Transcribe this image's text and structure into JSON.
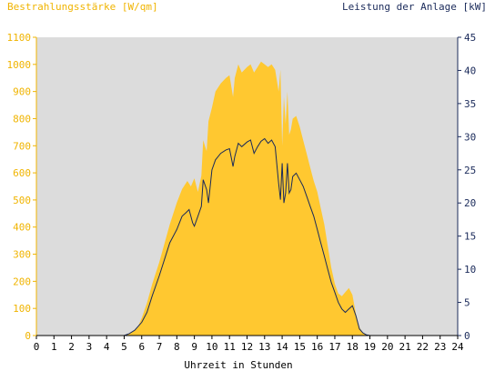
{
  "chart_data": {
    "type": "area",
    "title": "",
    "xlabel": "Uhrzeit in Stunden",
    "ylabel_left": "Bestrahlungsstärke [W/qm]",
    "ylabel_right": "Leistung der Anlage [kW]",
    "xlim": [
      0,
      24
    ],
    "ylim_left": [
      0,
      1100
    ],
    "ylim_right": [
      0,
      45
    ],
    "x_ticks": [
      "0",
      "1",
      "2",
      "3",
      "4",
      "5",
      "6",
      "7",
      "8",
      "9",
      "10",
      "11",
      "12",
      "13",
      "14",
      "15",
      "16",
      "17",
      "18",
      "19",
      "20",
      "21",
      "22",
      "23",
      "24"
    ],
    "y_left_ticks": [
      "0",
      "100",
      "200",
      "300",
      "400",
      "500",
      "600",
      "700",
      "800",
      "900",
      "1000",
      "1100"
    ],
    "y_right_ticks": [
      "0",
      "5",
      "10",
      "15",
      "20",
      "25",
      "30",
      "35",
      "40",
      "45"
    ],
    "grid": false,
    "colors": {
      "background": "#dcdcdc",
      "irradiance_fill": "#ffc830",
      "irradiance_axis": "#f0b400",
      "power_line": "#1a2a5a",
      "right_axis": "#1a2a5a"
    },
    "series": [
      {
        "name": "Bestrahlungsstärke [W/qm]",
        "axis": "left",
        "x": [
          0,
          5.0,
          5.2,
          5.5,
          5.8,
          6.0,
          6.3,
          6.6,
          7.0,
          7.3,
          7.6,
          8.0,
          8.3,
          8.6,
          8.8,
          9.0,
          9.2,
          9.4,
          9.5,
          9.7,
          9.8,
          10.0,
          10.2,
          10.5,
          10.8,
          11.0,
          11.2,
          11.3,
          11.5,
          11.7,
          12.0,
          12.2,
          12.4,
          12.6,
          12.8,
          13.0,
          13.2,
          13.4,
          13.6,
          13.8,
          13.9,
          14.0,
          14.1,
          14.2,
          14.3,
          14.4,
          14.5,
          14.6,
          14.8,
          15.0,
          15.2,
          15.4,
          15.6,
          15.8,
          16.0,
          16.2,
          16.4,
          16.6,
          16.8,
          17.0,
          17.2,
          17.4,
          17.6,
          17.8,
          18.0,
          18.2,
          18.4,
          18.6,
          18.8,
          19.0,
          19.2,
          19.5,
          19.8,
          20.0,
          24
        ],
        "values": [
          0,
          0,
          5,
          15,
          35,
          65,
          120,
          190,
          270,
          340,
          410,
          490,
          540,
          570,
          550,
          580,
          530,
          590,
          720,
          680,
          790,
          840,
          900,
          930,
          950,
          960,
          880,
          950,
          1000,
          970,
          990,
          1000,
          970,
          990,
          1010,
          1000,
          990,
          1000,
          980,
          900,
          980,
          700,
          880,
          780,
          900,
          740,
          760,
          800,
          810,
          770,
          720,
          670,
          620,
          570,
          530,
          470,
          410,
          330,
          250,
          190,
          155,
          145,
          160,
          175,
          150,
          80,
          30,
          10,
          3,
          0,
          0,
          0,
          0,
          0,
          0
        ]
      },
      {
        "name": "Leistung der Anlage [kW]",
        "axis": "right",
        "x": [
          0,
          5.0,
          5.3,
          5.6,
          6.0,
          6.3,
          6.6,
          7.0,
          7.3,
          7.6,
          8.0,
          8.3,
          8.5,
          8.7,
          8.9,
          9.0,
          9.2,
          9.4,
          9.5,
          9.7,
          9.8,
          10.0,
          10.2,
          10.5,
          10.8,
          11.0,
          11.2,
          11.3,
          11.5,
          11.7,
          12.0,
          12.2,
          12.4,
          12.6,
          12.8,
          13.0,
          13.2,
          13.4,
          13.6,
          13.8,
          13.9,
          14.0,
          14.1,
          14.2,
          14.3,
          14.4,
          14.5,
          14.6,
          14.8,
          15.0,
          15.2,
          15.4,
          15.6,
          15.8,
          16.0,
          16.2,
          16.4,
          16.6,
          16.8,
          17.0,
          17.2,
          17.4,
          17.6,
          17.8,
          18.0,
          18.2,
          18.4,
          18.6,
          18.8,
          19.0,
          19.2,
          19.5,
          20.0,
          24
        ],
        "values": [
          0,
          0,
          0.3,
          0.8,
          2,
          3.5,
          6,
          9,
          11.5,
          14,
          16,
          18,
          18.5,
          19,
          17,
          16.5,
          18,
          19.5,
          23.5,
          22,
          20,
          25,
          26.5,
          27.5,
          28,
          28.2,
          25.5,
          27,
          29,
          28.5,
          29.2,
          29.5,
          27.5,
          28.5,
          29.3,
          29.7,
          29,
          29.5,
          28.5,
          23,
          20.5,
          26,
          20,
          21.5,
          26,
          21.5,
          22,
          24,
          24.5,
          23.5,
          22.5,
          21,
          19.5,
          18,
          16,
          14,
          12,
          10,
          8,
          6.5,
          5,
          4,
          3.5,
          4,
          4.5,
          3,
          1,
          0.4,
          0.1,
          0,
          0,
          0,
          0,
          0
        ]
      }
    ]
  }
}
